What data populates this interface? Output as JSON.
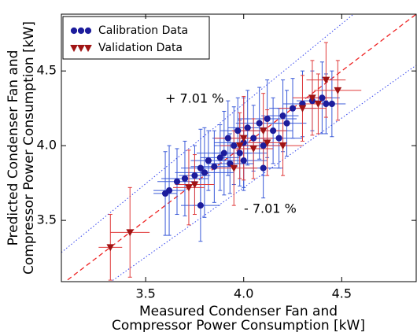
{
  "chart_data": {
    "type": "scatter",
    "xlabel": [
      "Measured Condenser Fan and",
      "Compressor Power Consumption [kW]"
    ],
    "ylabel": [
      "Predicted Condenser Fan and",
      "Compressor Power Consumption [kW]"
    ],
    "xlim": [
      3.07,
      4.88
    ],
    "ylim": [
      3.09,
      4.88
    ],
    "xticks": [
      3.5,
      {
        "value": 4,
        "label": "4.0"
      },
      4.5
    ],
    "yticks": [
      3.5,
      {
        "value": 4,
        "label": "4.0"
      },
      4.5
    ],
    "identity_line": true,
    "identity_color": "#ee2222",
    "bands": [
      {
        "value": 7.01,
        "label": "+ 7.01 %"
      },
      {
        "value": -7.01,
        "label": "- 7.01 %"
      }
    ],
    "band_color": "#3344ee",
    "legend": "upper left",
    "series": [
      {
        "name": "Calibration Data",
        "marker": "circle",
        "color": "#1c1c9c",
        "error_color": "#3a5ad8",
        "x": [
          3.6,
          3.62,
          3.66,
          3.7,
          3.75,
          3.78,
          3.8,
          3.82,
          3.85,
          3.88,
          3.9,
          3.92,
          3.93,
          3.95,
          3.97,
          4,
          4,
          4.02,
          4.05,
          4.08,
          4.1,
          4.12,
          4.15,
          4.18,
          4.2,
          4.22,
          4.25,
          4.3,
          4.35,
          4.4,
          4.42,
          4.45,
          3.78,
          4.1,
          3.98
        ],
        "y": [
          3.68,
          3.7,
          3.76,
          3.78,
          3.8,
          3.85,
          3.82,
          3.9,
          3.86,
          3.92,
          3.95,
          4.05,
          3.88,
          4,
          4.1,
          4.02,
          3.9,
          4.12,
          4.05,
          4.15,
          3.85,
          4.18,
          4.1,
          4.05,
          4.2,
          4.15,
          4.25,
          4.28,
          4.3,
          4.32,
          4.28,
          4.28,
          3.6,
          4,
          3.95
        ],
        "x_err": [
          0.06,
          0.08,
          0.1,
          0.12,
          0.08,
          0.1,
          0.15,
          0.09,
          0.12,
          0.1,
          0.14,
          0.08,
          0.12,
          0.1,
          0.09,
          0.15,
          0.12,
          0.1,
          0.08,
          0.12,
          0.1,
          0.15,
          0.1,
          0.12,
          0.08,
          0.1,
          0.12,
          0.1,
          0.08,
          0.09,
          0.1,
          0.06,
          0.1,
          0.12,
          0.14
        ],
        "y_err": [
          0.28,
          0.3,
          0.22,
          0.25,
          0.2,
          0.26,
          0.3,
          0.2,
          0.24,
          0.22,
          0.28,
          0.25,
          0.2,
          0.26,
          0.22,
          0.3,
          0.2,
          0.25,
          0.22,
          0.24,
          0.2,
          0.26,
          0.22,
          0.2,
          0.24,
          0.22,
          0.2,
          0.22,
          0.2,
          0.24,
          0.2,
          0.22,
          0.24,
          0.2,
          0.22
        ]
      },
      {
        "name": "Validation Data",
        "marker": "triangle-down",
        "color": "#a01414",
        "error_color": "#e03a3a",
        "x": [
          3.32,
          3.42,
          3.72,
          3.75,
          3.95,
          3.98,
          4,
          4.05,
          4.1,
          4.12,
          4.2,
          4.3,
          4.35,
          4.38,
          4.42,
          4.48
        ],
        "y": [
          3.32,
          3.42,
          3.72,
          3.74,
          3.85,
          4,
          4.05,
          3.98,
          4.1,
          4.02,
          4,
          4.25,
          4.32,
          4.28,
          4.44,
          4.37
        ],
        "x_err": [
          0.06,
          0.1,
          0.08,
          0.1,
          0.12,
          0.1,
          0.15,
          0.1,
          0.12,
          0.1,
          0.1,
          0.12,
          0.1,
          0.08,
          0.1,
          0.12
        ],
        "y_err": [
          0.22,
          0.3,
          0.25,
          0.2,
          0.25,
          0.22,
          0.28,
          0.2,
          0.25,
          0.22,
          0.2,
          0.22,
          0.25,
          0.2,
          0.25,
          0.2
        ]
      }
    ]
  }
}
